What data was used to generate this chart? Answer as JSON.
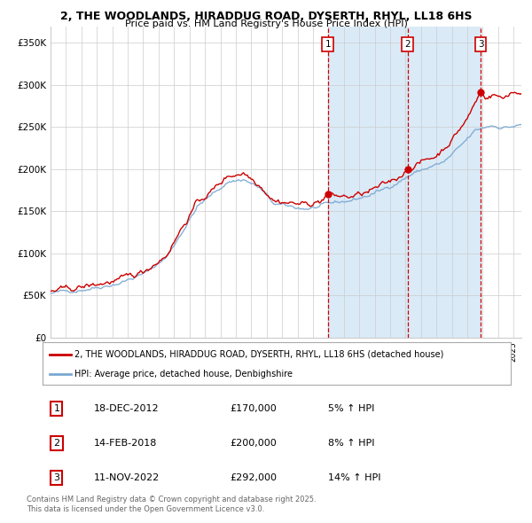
{
  "title_line1": "2, THE WOODLANDS, HIRADDUG ROAD, DYSERTH, RHYL, LL18 6HS",
  "title_line2": "Price paid vs. HM Land Registry's House Price Index (HPI)",
  "xlim_start": 1995.0,
  "xlim_end": 2025.5,
  "ylim_min": 0,
  "ylim_max": 370000,
  "yticks": [
    0,
    50000,
    100000,
    150000,
    200000,
    250000,
    300000,
    350000
  ],
  "ytick_labels": [
    "£0",
    "£50K",
    "£100K",
    "£150K",
    "£200K",
    "£250K",
    "£300K",
    "£350K"
  ],
  "hpi_color": "#7aa8d2",
  "price_color": "#cc0000",
  "background_color": "#ffffff",
  "plot_bg_color": "#ffffff",
  "grid_color": "#cccccc",
  "shade_color": "#daeaf7",
  "sale1_date": 2012.96,
  "sale1_price": 170000,
  "sale2_date": 2018.12,
  "sale2_price": 200000,
  "sale3_date": 2022.87,
  "sale3_price": 292000,
  "legend_entries": [
    "2, THE WOODLANDS, HIRADDUG ROAD, DYSERTH, RHYL, LL18 6HS (detached house)",
    "HPI: Average price, detached house, Denbighshire"
  ],
  "table_rows": [
    {
      "num": "1",
      "date": "18-DEC-2012",
      "price": "£170,000",
      "hpi": "5% ↑ HPI"
    },
    {
      "num": "2",
      "date": "14-FEB-2018",
      "price": "£200,000",
      "hpi": "8% ↑ HPI"
    },
    {
      "num": "3",
      "date": "11-NOV-2022",
      "price": "£292,000",
      "hpi": "14% ↑ HPI"
    }
  ],
  "footnote": "Contains HM Land Registry data © Crown copyright and database right 2025.\nThis data is licensed under the Open Government Licence v3.0."
}
